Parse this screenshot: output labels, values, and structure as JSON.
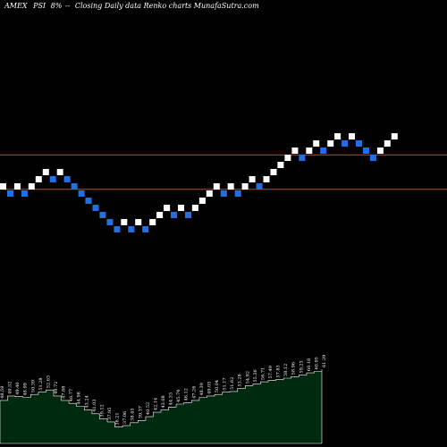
{
  "header": {
    "exchange": "AMEX",
    "symbol": "PSI",
    "change": "8%",
    "description": "Closing Daily data  Renko  charts MunafaSutra.com"
  },
  "colors": {
    "background": "#000000",
    "up_brick": "#ffffff",
    "down_brick": "#1e6fe8",
    "level_line": "#b5532a",
    "volume_fill": "#002a0f",
    "volume_line": "#ffffff"
  },
  "chart_data": {
    "type": "renko",
    "bricks": [
      {
        "level": 0,
        "dir": "up"
      },
      {
        "level": -1,
        "dir": "down"
      },
      {
        "level": 0,
        "dir": "up"
      },
      {
        "level": -1,
        "dir": "down"
      },
      {
        "level": 0,
        "dir": "up"
      },
      {
        "level": 1,
        "dir": "up"
      },
      {
        "level": 2,
        "dir": "up"
      },
      {
        "level": 1,
        "dir": "down"
      },
      {
        "level": 2,
        "dir": "up"
      },
      {
        "level": 1,
        "dir": "down"
      },
      {
        "level": 0,
        "dir": "down"
      },
      {
        "level": -1,
        "dir": "down"
      },
      {
        "level": -2,
        "dir": "down"
      },
      {
        "level": -3,
        "dir": "down"
      },
      {
        "level": -4,
        "dir": "down"
      },
      {
        "level": -5,
        "dir": "down"
      },
      {
        "level": -6,
        "dir": "down"
      },
      {
        "level": -5,
        "dir": "up"
      },
      {
        "level": -6,
        "dir": "down"
      },
      {
        "level": -5,
        "dir": "up"
      },
      {
        "level": -6,
        "dir": "down"
      },
      {
        "level": -5,
        "dir": "up"
      },
      {
        "level": -4,
        "dir": "up"
      },
      {
        "level": -3,
        "dir": "up"
      },
      {
        "level": -4,
        "dir": "down"
      },
      {
        "level": -3,
        "dir": "up"
      },
      {
        "level": -4,
        "dir": "down"
      },
      {
        "level": -3,
        "dir": "up"
      },
      {
        "level": -2,
        "dir": "up"
      },
      {
        "level": -1,
        "dir": "up"
      },
      {
        "level": 0,
        "dir": "up"
      },
      {
        "level": -1,
        "dir": "down"
      },
      {
        "level": 0,
        "dir": "up"
      },
      {
        "level": -1,
        "dir": "down"
      },
      {
        "level": 0,
        "dir": "up"
      },
      {
        "level": 1,
        "dir": "up"
      },
      {
        "level": 0,
        "dir": "down"
      },
      {
        "level": 1,
        "dir": "up"
      },
      {
        "level": 2,
        "dir": "up"
      },
      {
        "level": 3,
        "dir": "up"
      },
      {
        "level": 4,
        "dir": "up"
      },
      {
        "level": 5,
        "dir": "up"
      },
      {
        "level": 4,
        "dir": "down"
      },
      {
        "level": 5,
        "dir": "up"
      },
      {
        "level": 6,
        "dir": "up"
      },
      {
        "level": 5,
        "dir": "down"
      },
      {
        "level": 6,
        "dir": "up"
      },
      {
        "level": 7,
        "dir": "up"
      },
      {
        "level": 6,
        "dir": "down"
      },
      {
        "level": 7,
        "dir": "up"
      },
      {
        "level": 6,
        "dir": "down"
      },
      {
        "level": 5,
        "dir": "down"
      },
      {
        "level": 4,
        "dir": "down"
      },
      {
        "level": 5,
        "dir": "up"
      },
      {
        "level": 6,
        "dir": "up"
      },
      {
        "level": 7,
        "dir": "up"
      }
    ],
    "reference_levels": [
      4.4,
      -0.4
    ],
    "volume_panel": {
      "values": [
        0.58,
        0.64,
        0.63,
        0.62,
        0.66,
        0.69,
        0.72,
        0.64,
        0.58,
        0.54,
        0.5,
        0.45,
        0.4,
        0.33,
        0.29,
        0.22,
        0.24,
        0.28,
        0.31,
        0.36,
        0.42,
        0.45,
        0.49,
        0.53,
        0.55,
        0.58,
        0.62,
        0.64,
        0.66,
        0.69,
        0.7,
        0.74,
        0.78,
        0.8,
        0.83,
        0.85,
        0.86,
        0.88,
        0.9,
        0.92,
        0.95,
        0.97,
        1.0
      ],
      "labels": [
        "48.59",
        "49.52",
        "49.40",
        "48.99",
        "50.39",
        "51.28",
        "52.63",
        "49.72",
        "47.88",
        "46.77",
        "44.98",
        "43.24",
        "41.03",
        "39.12",
        "37.95",
        "36.21",
        "37.06",
        "38.45",
        "39.37",
        "40.52",
        "42.14",
        "43.08",
        "44.33",
        "45.74",
        "46.12",
        "47.26",
        "48.39",
        "49.05",
        "50.04",
        "51.17",
        "51.62",
        "53.28",
        "54.92",
        "55.36",
        "56.71",
        "57.49",
        "57.83",
        "58.12",
        "58.96",
        "59.23",
        "60.18",
        "60.95",
        "61.29"
      ]
    }
  }
}
